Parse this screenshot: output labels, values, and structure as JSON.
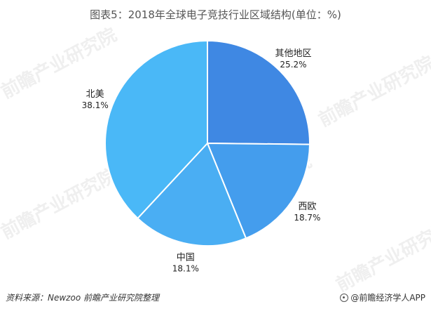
{
  "title": "图表5：2018年全球电子竞技行业区域结构(单位：%)",
  "source": "资料来源：Newzoo 前瞻产业研究院整理",
  "brand": "@前瞻经济学人APP",
  "watermark": "前瞻产业研究院",
  "chart_data": {
    "type": "pie",
    "title": "图表5：2018年全球电子竞技行业区域结构(单位：%)",
    "start_angle_deg": 0,
    "direction": "clockwise",
    "slices": [
      {
        "label": "其他地区",
        "value": 25.2,
        "value_label": "25.2%",
        "color": "#3f88e3"
      },
      {
        "label": "西欧",
        "value": 18.7,
        "value_label": "18.7%",
        "color": "#449ded"
      },
      {
        "label": "中国",
        "value": 18.1,
        "value_label": "18.1%",
        "color": "#4aaef3"
      },
      {
        "label": "北美",
        "value": 38.1,
        "value_label": "38.1%",
        "color": "#4ab8f7"
      }
    ]
  }
}
